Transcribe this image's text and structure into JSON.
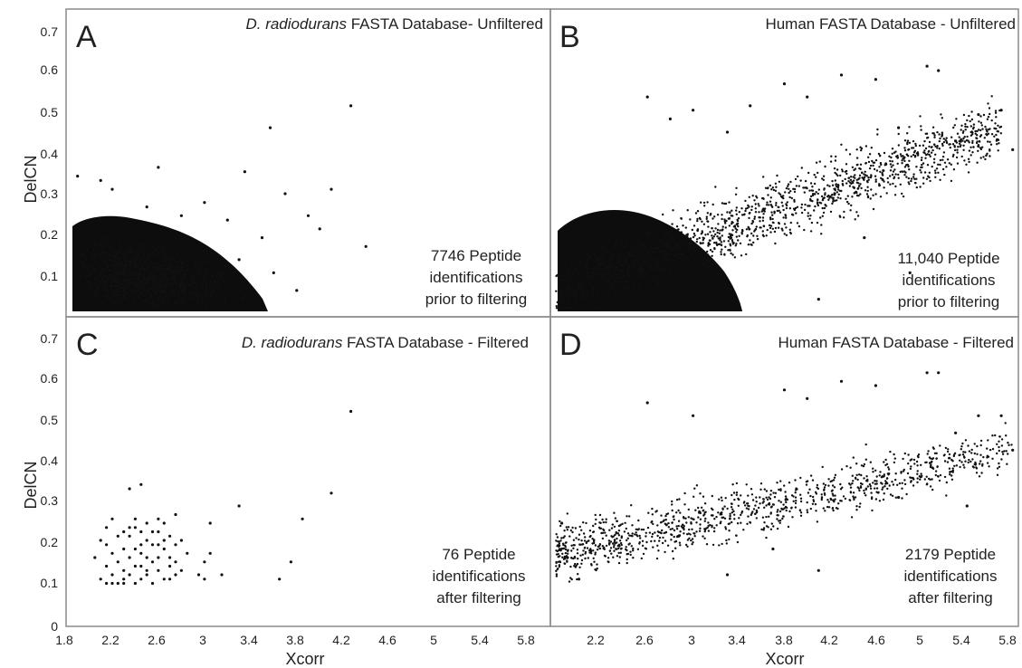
{
  "figure": {
    "ylabel": "DelCN",
    "xlabel": "Xcorr",
    "yticks": [
      "0.7",
      "0.6",
      "0.5",
      "0.4",
      "0.3",
      "0.2",
      "0.1",
      "0"
    ],
    "xticks": [
      "1.8",
      "2.2",
      "2.6",
      "3",
      "3.4",
      "3.8",
      "4.2",
      "4.6",
      "5",
      "5.4",
      "5.8"
    ],
    "xticks_right": [
      "2.2",
      "2.6",
      "3",
      "3.4",
      "3.8",
      "4.2",
      "4.6",
      "5",
      "5.4",
      "5.8"
    ]
  },
  "panels": [
    {
      "letter": "A",
      "title_italic": "D. radiodurans",
      "title_rest": " FASTA Database- Unfiltered",
      "annotation": [
        "7746 Peptide",
        "identifications",
        "prior to filtering"
      ]
    },
    {
      "letter": "B",
      "title_italic": "",
      "title_rest": "Human  FASTA Database - Unfiltered",
      "annotation": [
        "11,040 Peptide",
        "identifications",
        "prior to filtering"
      ]
    },
    {
      "letter": "C",
      "title_italic": "D. radiodurans",
      "title_rest": " FASTA Database - Filtered",
      "annotation": [
        "76 Peptide",
        "identifications",
        "after filtering"
      ]
    },
    {
      "letter": "D",
      "title_italic": "",
      "title_rest": "Human  FASTA Database - Filtered",
      "annotation": [
        "2179 Peptide",
        "identifications",
        "after filtering"
      ]
    }
  ],
  "chart_data": [
    {
      "panel": "A",
      "type": "scatter",
      "title": "D. radiodurans FASTA Database- Unfiltered",
      "xlabel": "",
      "ylabel": "DelCN",
      "xlim": [
        1.8,
        6.0
      ],
      "ylim": [
        0.02,
        0.72
      ],
      "point_count": 7746,
      "points": [
        [
          4.27,
          0.5
        ],
        [
          3.57,
          0.45
        ],
        [
          3.35,
          0.35
        ],
        [
          4.1,
          0.31
        ],
        [
          2.6,
          0.36
        ],
        [
          1.9,
          0.34
        ],
        [
          2.2,
          0.31
        ],
        [
          3.7,
          0.3
        ],
        [
          3.0,
          0.28
        ],
        [
          2.8,
          0.25
        ],
        [
          3.9,
          0.25
        ],
        [
          4.0,
          0.22
        ],
        [
          3.3,
          0.15
        ],
        [
          3.6,
          0.12
        ],
        [
          3.8,
          0.08
        ],
        [
          4.4,
          0.18
        ],
        [
          3.5,
          0.2
        ],
        [
          2.5,
          0.27
        ],
        [
          2.1,
          0.33
        ],
        [
          3.2,
          0.24
        ]
      ]
    },
    {
      "panel": "B",
      "type": "scatter",
      "title": "Human FASTA Database - Unfiltered",
      "xlabel": "",
      "ylabel": "",
      "xlim": [
        1.85,
        5.95
      ],
      "ylim": [
        0.02,
        0.72
      ],
      "point_count": 11040,
      "points": [
        [
          5.15,
          0.59
        ],
        [
          5.25,
          0.58
        ],
        [
          4.4,
          0.57
        ],
        [
          4.7,
          0.56
        ],
        [
          3.9,
          0.55
        ],
        [
          5.8,
          0.49
        ],
        [
          4.1,
          0.52
        ],
        [
          3.6,
          0.5
        ],
        [
          2.7,
          0.52
        ],
        [
          3.1,
          0.49
        ],
        [
          5.6,
          0.48
        ],
        [
          4.9,
          0.45
        ],
        [
          5.9,
          0.4
        ],
        [
          5.4,
          0.42
        ],
        [
          3.4,
          0.44
        ],
        [
          2.9,
          0.47
        ],
        [
          4.2,
          0.06
        ],
        [
          3.5,
          0.05
        ],
        [
          5.0,
          0.12
        ],
        [
          4.6,
          0.2
        ]
      ]
    },
    {
      "panel": "C",
      "type": "scatter",
      "title": "D. radiodurans FASTA Database - Filtered",
      "xlabel": "Xcorr",
      "ylabel": "DelCN",
      "xlim": [
        1.8,
        6.0
      ],
      "ylim": [
        0.0,
        0.72
      ],
      "point_count": 76,
      "points": [
        [
          4.27,
          0.5
        ],
        [
          4.1,
          0.31
        ],
        [
          3.85,
          0.25
        ],
        [
          3.75,
          0.15
        ],
        [
          3.65,
          0.11
        ],
        [
          3.3,
          0.28
        ],
        [
          3.05,
          0.24
        ],
        [
          2.35,
          0.32
        ],
        [
          2.45,
          0.33
        ],
        [
          3.0,
          0.15
        ],
        [
          2.75,
          0.26
        ],
        [
          2.2,
          0.25
        ],
        [
          2.15,
          0.23
        ],
        [
          2.1,
          0.2
        ],
        [
          2.05,
          0.16
        ],
        [
          2.1,
          0.11
        ],
        [
          2.15,
          0.14
        ],
        [
          2.2,
          0.12
        ],
        [
          2.25,
          0.1
        ],
        [
          2.3,
          0.1
        ],
        [
          2.35,
          0.21
        ],
        [
          2.4,
          0.23
        ],
        [
          2.45,
          0.17
        ],
        [
          2.5,
          0.12
        ],
        [
          2.55,
          0.19
        ],
        [
          2.6,
          0.22
        ],
        [
          2.65,
          0.18
        ],
        [
          2.7,
          0.16
        ],
        [
          2.75,
          0.12
        ],
        [
          2.8,
          0.2
        ],
        [
          2.4,
          0.14
        ],
        [
          2.5,
          0.24
        ],
        [
          2.6,
          0.13
        ],
        [
          2.7,
          0.21
        ],
        [
          2.3,
          0.18
        ],
        [
          2.55,
          0.15
        ],
        [
          2.45,
          0.11
        ],
        [
          2.35,
          0.16
        ],
        [
          2.65,
          0.24
        ],
        [
          2.85,
          0.17
        ],
        [
          3.05,
          0.17
        ],
        [
          3.15,
          0.12
        ],
        [
          2.95,
          0.12
        ],
        [
          2.2,
          0.17
        ],
        [
          2.15,
          0.19
        ],
        [
          2.4,
          0.25
        ],
        [
          2.55,
          0.1
        ],
        [
          2.6,
          0.16
        ],
        [
          2.3,
          0.13
        ],
        [
          2.5,
          0.2
        ],
        [
          2.7,
          0.14
        ],
        [
          2.75,
          0.19
        ],
        [
          2.35,
          0.12
        ],
        [
          2.45,
          0.19
        ],
        [
          2.25,
          0.15
        ],
        [
          2.65,
          0.11
        ],
        [
          2.5,
          0.16
        ],
        [
          2.6,
          0.25
        ],
        [
          2.4,
          0.1
        ],
        [
          2.3,
          0.22
        ],
        [
          2.2,
          0.1
        ],
        [
          2.8,
          0.13
        ],
        [
          2.55,
          0.22
        ],
        [
          2.45,
          0.14
        ],
        [
          2.35,
          0.23
        ],
        [
          2.65,
          0.2
        ],
        [
          2.7,
          0.11
        ],
        [
          2.25,
          0.21
        ],
        [
          2.5,
          0.13
        ],
        [
          2.6,
          0.19
        ],
        [
          2.4,
          0.18
        ],
        [
          2.3,
          0.11
        ],
        [
          2.75,
          0.15
        ],
        [
          3.0,
          0.11
        ],
        [
          2.15,
          0.1
        ],
        [
          2.45,
          0.22
        ]
      ]
    },
    {
      "panel": "D",
      "type": "scatter",
      "title": "Human FASTA Database - Filtered",
      "xlabel": "Xcorr",
      "ylabel": "",
      "xlim": [
        1.85,
        5.95
      ],
      "ylim": [
        0.0,
        0.72
      ],
      "point_count": 2179,
      "points": [
        [
          5.15,
          0.59
        ],
        [
          5.25,
          0.59
        ],
        [
          4.4,
          0.57
        ],
        [
          4.7,
          0.56
        ],
        [
          3.9,
          0.55
        ],
        [
          4.1,
          0.53
        ],
        [
          5.8,
          0.49
        ],
        [
          5.6,
          0.49
        ],
        [
          2.7,
          0.52
        ],
        [
          3.1,
          0.49
        ],
        [
          5.9,
          0.41
        ],
        [
          5.4,
          0.45
        ],
        [
          4.2,
          0.13
        ],
        [
          3.4,
          0.12
        ],
        [
          5.5,
          0.28
        ],
        [
          4.9,
          0.3
        ],
        [
          1.95,
          0.24
        ],
        [
          2.0,
          0.16
        ],
        [
          2.1,
          0.11
        ],
        [
          3.8,
          0.18
        ]
      ]
    }
  ]
}
